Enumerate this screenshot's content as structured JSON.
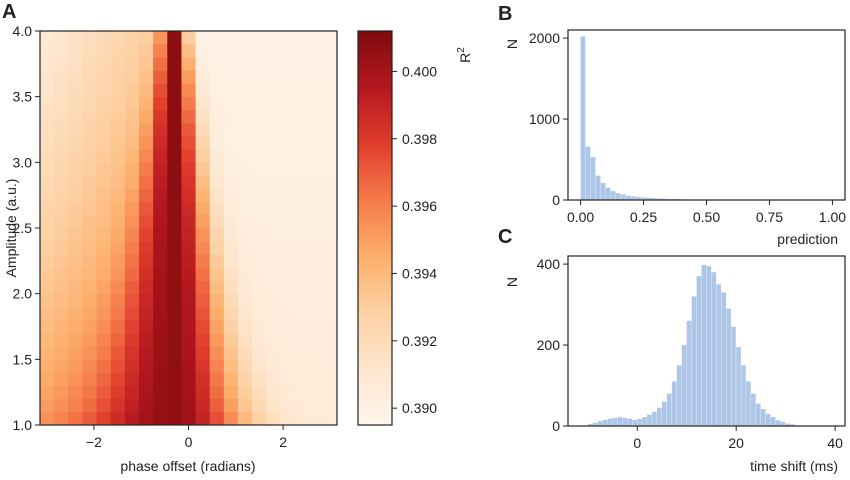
{
  "chart_data": [
    {
      "panel": "A",
      "type": "heatmap",
      "xlabel": "phase offset (radians)",
      "ylabel": "Amplitude (a.u.)",
      "colorbar_label": "R",
      "colorbar_label_sup": "2",
      "xlim": [
        -3.14,
        3.14
      ],
      "ylim": [
        1.0,
        4.0
      ],
      "x_ticks": [
        -2,
        0,
        2
      ],
      "x_tick_labels": [
        "−2",
        "0",
        "2"
      ],
      "y_ticks": [
        1.0,
        1.5,
        2.0,
        2.5,
        3.0,
        3.5,
        4.0
      ],
      "y_tick_labels": [
        "1.0",
        "1.5",
        "2.0",
        "2.5",
        "3.0",
        "3.5",
        "4.0"
      ],
      "grid_cols": 21,
      "grid_rows": 30,
      "color_range": [
        0.3895,
        0.4012
      ],
      "colorbar_ticks": [
        0.39,
        0.392,
        0.394,
        0.396,
        0.398,
        0.4
      ],
      "colorbar_tick_labels": [
        "0.390",
        "0.392",
        "0.394",
        "0.396",
        "0.398",
        "0.400"
      ],
      "colormap": [
        "#fff5eb",
        "#fee6ce",
        "#fdd0a2",
        "#fdae6b",
        "#f57a4a",
        "#e03d2c",
        "#b5171f",
        "#7f0b0c"
      ],
      "model": {
        "base": 0.3898,
        "peak_phase": -0.3,
        "peak_value_top": 0.4008,
        "peak_value_bottom": 0.4006,
        "peak_width_top": 0.18,
        "peak_width_bottom": 1.1,
        "left_plateau_top": 0.3932,
        "left_plateau_bottom": 0.3975,
        "right_plateau_top": 0.3899,
        "right_plateau_bottom": 0.3905
      }
    },
    {
      "panel": "B",
      "type": "bar",
      "xlabel": "prediction",
      "ylabel": "N",
      "xlim": [
        -0.05,
        1.05
      ],
      "ylim": [
        0,
        2100
      ],
      "x_ticks": [
        0.0,
        0.25,
        0.5,
        0.75,
        1.0
      ],
      "x_tick_labels": [
        "0.00",
        "0.25",
        "0.50",
        "0.75",
        "1.00"
      ],
      "y_ticks": [
        0,
        1000,
        2000
      ],
      "y_tick_labels": [
        "0",
        "1000",
        "2000"
      ],
      "bin_start": 0.0,
      "bin_width": 0.02,
      "values": [
        2020,
        660,
        530,
        300,
        210,
        150,
        110,
        85,
        70,
        55,
        45,
        38,
        32,
        28,
        24,
        20,
        17,
        14,
        12,
        10,
        8,
        7,
        6,
        5,
        4,
        4,
        3,
        3,
        2,
        2,
        2,
        1,
        1,
        1,
        1,
        1,
        1,
        1,
        1,
        1,
        1,
        1,
        1,
        1,
        1,
        1,
        1,
        1,
        1,
        2
      ],
      "bar_color": "#aec7e8"
    },
    {
      "panel": "C",
      "type": "bar",
      "xlabel": "time shift (ms)",
      "ylabel": "N",
      "xlim": [
        -14,
        42
      ],
      "ylim": [
        0,
        420
      ],
      "x_ticks": [
        0,
        20,
        40
      ],
      "x_tick_labels": [
        "0",
        "20",
        "40"
      ],
      "y_ticks": [
        0,
        200,
        400
      ],
      "y_tick_labels": [
        "0",
        "200",
        "400"
      ],
      "bin_start": -10,
      "bin_width": 1,
      "values": [
        5,
        8,
        12,
        15,
        18,
        20,
        22,
        20,
        18,
        15,
        18,
        22,
        28,
        35,
        45,
        60,
        80,
        110,
        150,
        200,
        260,
        320,
        370,
        398,
        395,
        380,
        350,
        330,
        290,
        245,
        195,
        150,
        110,
        80,
        55,
        42,
        30,
        22,
        14,
        10,
        6,
        4
      ],
      "bar_color": "#aec7e8"
    }
  ],
  "panel_letters": {
    "a": "A",
    "b": "B",
    "c": "C"
  }
}
